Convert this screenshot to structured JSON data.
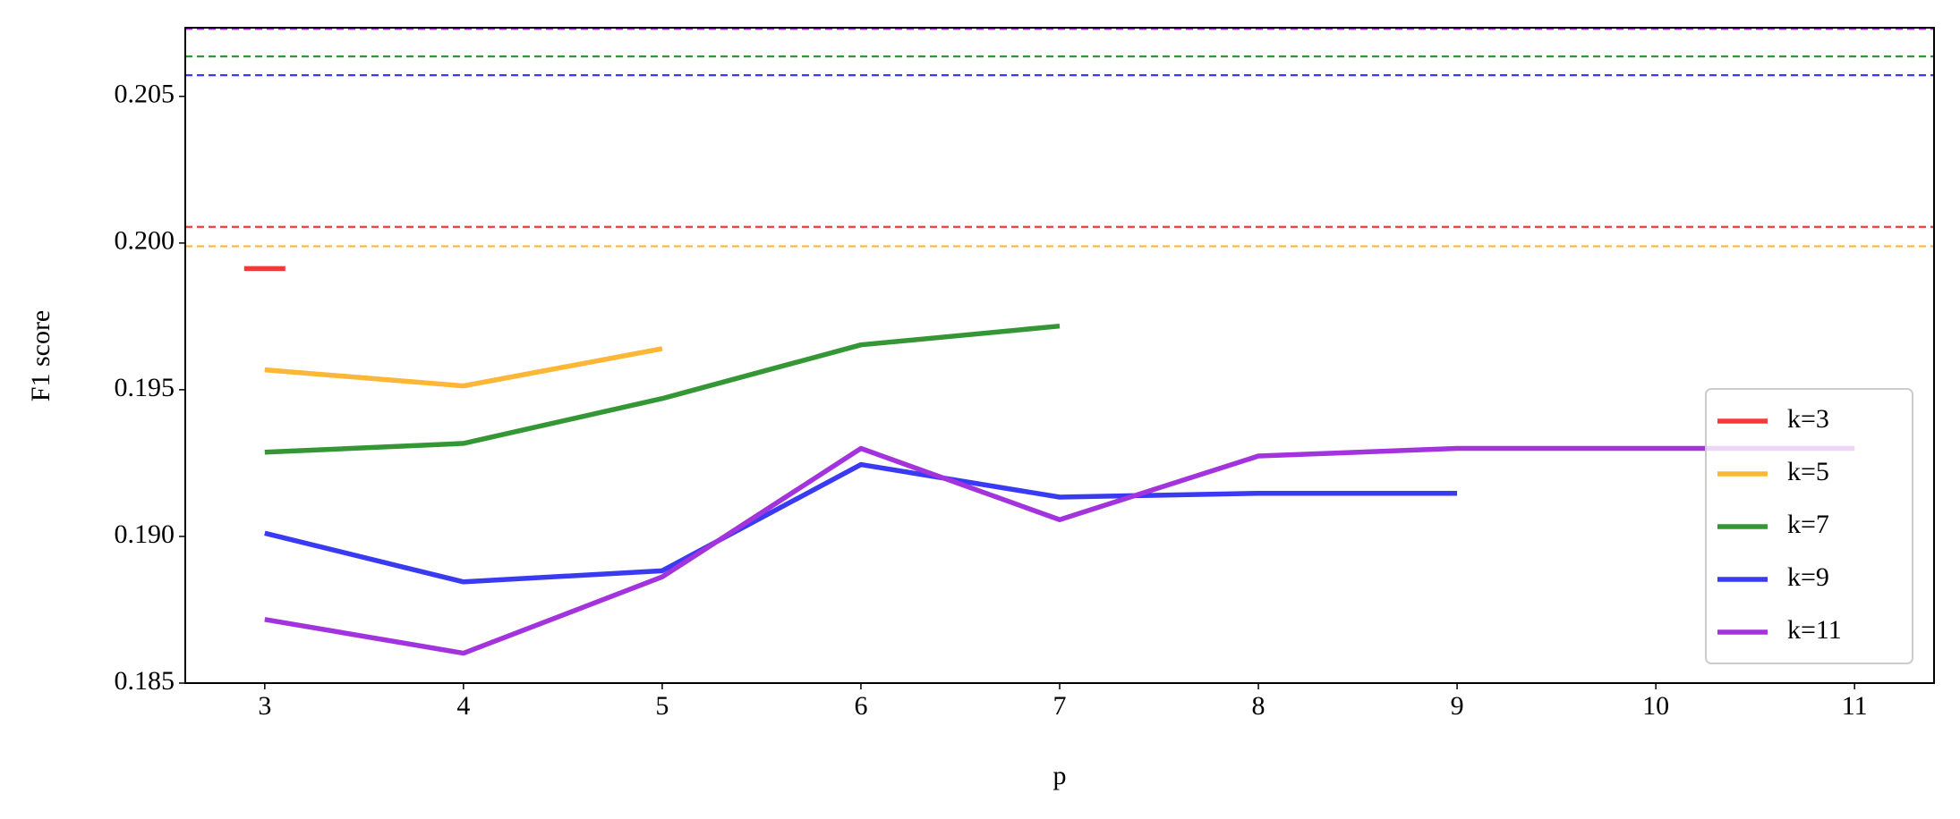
{
  "chart_data": {
    "type": "line",
    "x_label": "p",
    "y_label": "F1 score",
    "x": [
      3,
      4,
      5,
      6,
      7,
      8,
      9,
      10,
      11
    ],
    "series": [
      {
        "name": "k=3",
        "color": "#f33a3a",
        "baseline": 0.20055,
        "values": [
          0.19913,
          null,
          null,
          null,
          null,
          null,
          null,
          null,
          null
        ]
      },
      {
        "name": "k=5",
        "color": "#fdb636",
        "baseline": 0.19989,
        "values": [
          0.19568,
          0.19513,
          0.1964,
          null,
          null,
          null,
          null,
          null,
          null
        ]
      },
      {
        "name": "k=7",
        "color": "#349634",
        "baseline": 0.20636,
        "values": [
          0.19287,
          0.19317,
          0.1947,
          0.19653,
          0.19717,
          null,
          null,
          null,
          null
        ]
      },
      {
        "name": "k=9",
        "color": "#3a3af2",
        "baseline": 0.20572,
        "values": [
          0.19011,
          0.18845,
          0.18883,
          0.19245,
          0.19134,
          0.19147,
          0.19147,
          null,
          null
        ]
      },
      {
        "name": "k=11",
        "color": "#a333dd",
        "baseline": 0.2073,
        "values": [
          0.18717,
          0.18602,
          0.18862,
          0.193,
          0.19057,
          0.19274,
          0.193,
          0.193,
          0.193
        ]
      }
    ],
    "xlim": [
      2.6,
      11.4
    ],
    "ylim": [
      0.185,
      0.20734
    ],
    "xticks": [
      3,
      4,
      5,
      6,
      7,
      8,
      9,
      10,
      11
    ],
    "yticks": [
      0.185,
      {
        "value": 0.19,
        "label": "0.190"
      },
      0.195,
      {
        "value": 0.2,
        "label": "0.200"
      },
      0.205
    ],
    "legend": "lower right",
    "grid": false
  }
}
